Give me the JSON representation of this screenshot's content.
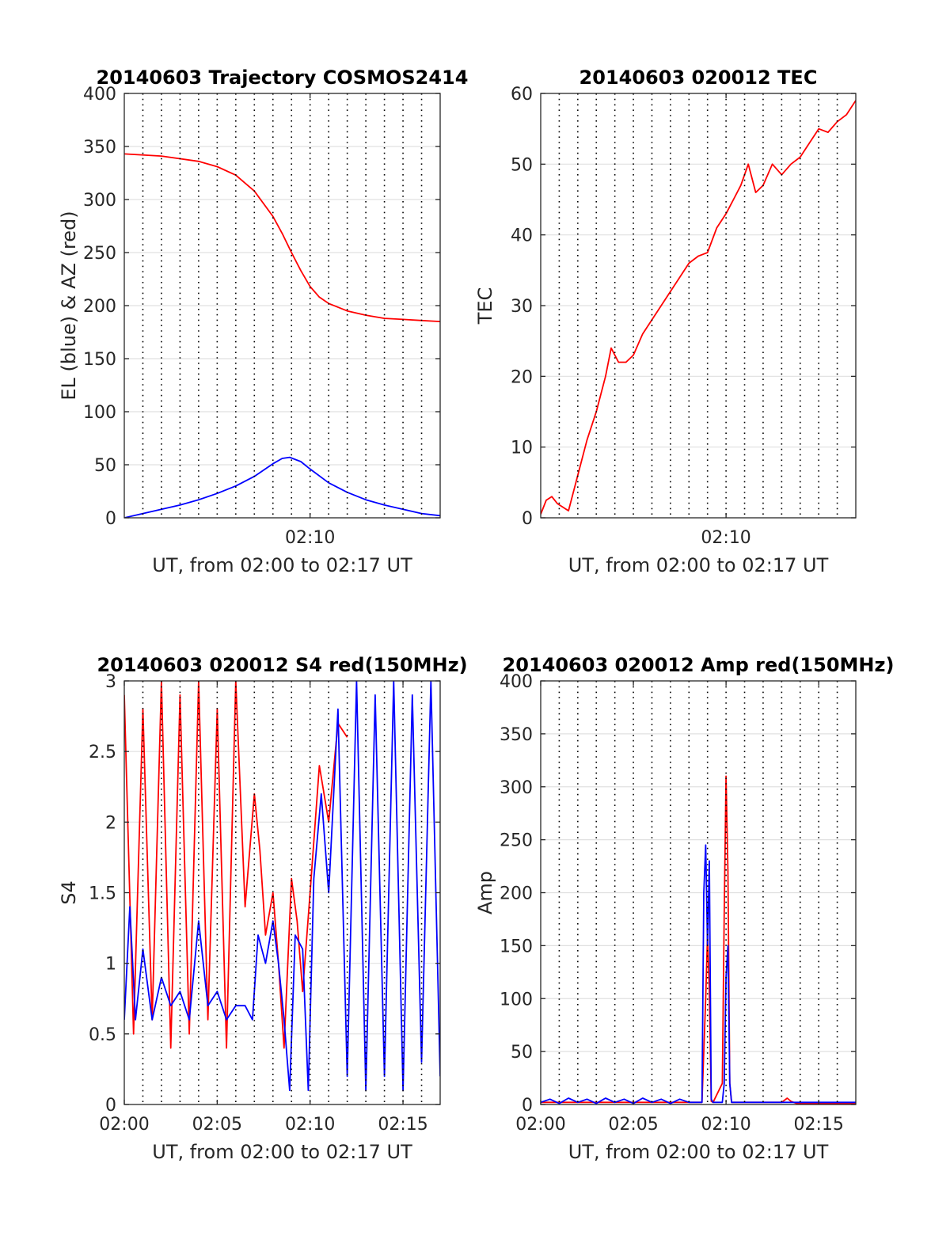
{
  "figure": {
    "series_colors": {
      "red": "#ff0000",
      "blue": "#0000ff"
    },
    "grid_color": "#e0e0e0",
    "dotted_line_color": "#000000"
  },
  "chart_data": [
    {
      "type": "line",
      "title": "20140603 Trajectory COSMOS2414",
      "xlabel": "UT, from 02:00 to 02:17 UT",
      "ylabel": "EL (blue) & AZ (red)",
      "xlim": [
        0,
        17
      ],
      "x_unit": "minutes after 02:00 UT",
      "ylim": [
        0,
        400
      ],
      "yticks": [
        0,
        50,
        100,
        150,
        200,
        250,
        300,
        350,
        400
      ],
      "xticks": [
        {
          "value": 10,
          "label": "02:10"
        }
      ],
      "dotted_verticals": [
        1,
        2,
        3,
        4,
        5,
        6,
        7,
        8,
        9,
        10,
        11,
        12,
        13,
        14,
        15,
        16
      ],
      "grid": "horizontal",
      "series": [
        {
          "color": "red",
          "x": [
            0,
            2,
            4,
            5,
            6,
            7,
            8,
            8.5,
            9,
            9.5,
            10,
            10.5,
            11,
            12,
            13,
            14,
            15,
            16,
            17
          ],
          "y": [
            343,
            341,
            336,
            331,
            323,
            308,
            284,
            268,
            250,
            233,
            218,
            208,
            202,
            195,
            191,
            188,
            187,
            186,
            185
          ]
        },
        {
          "color": "blue",
          "x": [
            0,
            1,
            2,
            3,
            4,
            5,
            6,
            7,
            7.5,
            8,
            8.5,
            8.9,
            9.5,
            10,
            11,
            12,
            13,
            14,
            15,
            16,
            17
          ],
          "y": [
            0,
            4,
            8,
            12,
            17,
            23,
            30,
            39,
            45,
            51,
            56,
            57,
            53,
            46,
            33,
            24,
            17,
            12,
            8,
            4,
            2
          ]
        }
      ]
    },
    {
      "type": "line",
      "title": "20140603 020012 TEC",
      "xlabel": "UT, from 02:00 to 02:17 UT",
      "ylabel": "TEC",
      "xlim": [
        0,
        17
      ],
      "x_unit": "minutes after 02:00 UT",
      "ylim": [
        0,
        60
      ],
      "yticks": [
        0,
        10,
        20,
        30,
        40,
        50,
        60
      ],
      "xticks": [
        {
          "value": 10,
          "label": "02:10"
        }
      ],
      "dotted_verticals": [
        1,
        2,
        3,
        4,
        5,
        6,
        7,
        8,
        9,
        10,
        11,
        12,
        13,
        14,
        15,
        16
      ],
      "grid": "horizontal",
      "series": [
        {
          "color": "red",
          "x": [
            0,
            0.3,
            0.6,
            0.9,
            1.2,
            1.5,
            2,
            2.5,
            3,
            3.5,
            3.8,
            4.2,
            4.6,
            5,
            5.5,
            6,
            6.5,
            7,
            7.5,
            8,
            8.5,
            9,
            9.5,
            10,
            10.4,
            10.8,
            11.2,
            11.6,
            12,
            12.5,
            13,
            13.5,
            14,
            14.5,
            15,
            15.5,
            16,
            16.5,
            17
          ],
          "y": [
            0.5,
            2.5,
            3,
            2,
            1.5,
            1,
            6,
            11,
            15,
            20,
            24,
            22,
            22,
            23,
            26,
            28,
            30,
            32,
            34,
            36,
            37,
            37.5,
            41,
            43,
            45,
            47,
            50,
            46,
            47,
            50,
            48.5,
            50,
            51,
            53,
            55,
            54.5,
            56,
            57,
            59
          ]
        }
      ]
    },
    {
      "type": "line",
      "title": "20140603 020012 S4 red(150MHz)",
      "xlabel": "UT, from 02:00 to 02:17 UT",
      "ylabel": "S4",
      "xlim": [
        0,
        17
      ],
      "x_unit": "minutes after 02:00 UT",
      "ylim": [
        0,
        3
      ],
      "yticks": [
        0,
        0.5,
        1,
        1.5,
        2,
        2.5,
        3
      ],
      "xticks": [
        {
          "value": 0,
          "label": "02:00"
        },
        {
          "value": 5,
          "label": "02:05"
        },
        {
          "value": 10,
          "label": "02:10"
        },
        {
          "value": 15,
          "label": "02:15"
        }
      ],
      "dotted_verticals": [
        1,
        2,
        3,
        4,
        5,
        6,
        7,
        8,
        9,
        10,
        11,
        12,
        13,
        14,
        15,
        16
      ],
      "grid": "horizontal",
      "series": [
        {
          "color": "red",
          "x": [
            0,
            0.5,
            1,
            1.5,
            2,
            2.5,
            3,
            3.5,
            4,
            4.5,
            5,
            5.5,
            6,
            6.5,
            7,
            7.3,
            7.6,
            8,
            8.3,
            8.6,
            9,
            9.3,
            9.6,
            10,
            10.5,
            11,
            11.5,
            12
          ],
          "y": [
            2.9,
            0.5,
            2.8,
            0.6,
            3,
            0.4,
            2.9,
            0.5,
            3,
            0.6,
            2.8,
            0.4,
            3,
            1.4,
            2.2,
            1.8,
            1.2,
            1.5,
            1,
            0.4,
            1.6,
            1.3,
            0.8,
            1.5,
            2.4,
            2,
            2.7,
            2.6
          ]
        },
        {
          "color": "blue",
          "x": [
            0,
            0.3,
            0.6,
            1,
            1.5,
            2,
            2.5,
            3,
            3.5,
            4,
            4.5,
            5,
            5.5,
            6,
            6.5,
            6.9,
            7.2,
            7.6,
            8,
            8.3,
            8.6,
            8.9,
            9.2,
            9.6,
            9.9,
            10.2,
            10.6,
            11,
            11.5,
            12,
            12.5,
            13,
            13.5,
            14,
            14.5,
            15,
            15.5,
            16,
            16.5,
            17
          ],
          "y": [
            0.6,
            1.4,
            0.6,
            1.1,
            0.6,
            0.9,
            0.7,
            0.8,
            0.6,
            1.3,
            0.7,
            0.8,
            0.6,
            0.7,
            0.7,
            0.6,
            1.2,
            1.0,
            1.3,
            1.0,
            0.6,
            0.1,
            1.2,
            1.1,
            0.1,
            1.6,
            2.2,
            1.5,
            2.8,
            0.2,
            3,
            0.1,
            2.9,
            0.2,
            3,
            0.1,
            2.9,
            0.3,
            3,
            0.2
          ]
        }
      ]
    },
    {
      "type": "line",
      "title": "20140603 020012 Amp red(150MHz)",
      "xlabel": "UT, from 02:00 to 02:17 UT",
      "ylabel": "Amp",
      "xlim": [
        0,
        17
      ],
      "x_unit": "minutes after 02:00 UT",
      "ylim": [
        0,
        400
      ],
      "yticks": [
        0,
        50,
        100,
        150,
        200,
        250,
        300,
        350,
        400
      ],
      "xticks": [
        {
          "value": 0,
          "label": "02:00"
        },
        {
          "value": 5,
          "label": "02:05"
        },
        {
          "value": 10,
          "label": "02:10"
        },
        {
          "value": 15,
          "label": "02:15"
        }
      ],
      "dotted_verticals": [
        1,
        2,
        3,
        4,
        5,
        6,
        7,
        8,
        9,
        10,
        11,
        12,
        13,
        14,
        15,
        16
      ],
      "grid": "horizontal",
      "series": [
        {
          "color": "red",
          "x": [
            0,
            8.7,
            8.9,
            9.0,
            9.1,
            9.2,
            9.3,
            9.8,
            9.9,
            10.0,
            10.1,
            10.2,
            10.3,
            13.0,
            13.3,
            13.5,
            13.8,
            17
          ],
          "y": [
            2,
            2,
            100,
            160,
            110,
            3,
            2,
            20,
            180,
            310,
            220,
            20,
            2,
            2,
            6,
            3,
            1,
            1
          ]
        },
        {
          "color": "blue",
          "x": [
            0,
            0.5,
            1,
            1.5,
            2,
            2.5,
            3,
            3.5,
            4,
            4.5,
            5,
            5.5,
            6,
            6.5,
            7,
            7.5,
            8,
            8.5,
            8.7,
            8.8,
            8.9,
            9.0,
            9.1,
            9.2,
            9.3,
            9.8,
            9.9,
            10.0,
            10.1,
            10.2,
            10.3,
            11,
            12,
            13,
            14,
            15,
            16,
            17
          ],
          "y": [
            2,
            5,
            1,
            6,
            2,
            5,
            1,
            6,
            2,
            5,
            1,
            6,
            2,
            5,
            1,
            5,
            2,
            2,
            2,
            200,
            245,
            150,
            230,
            5,
            2,
            2,
            20,
            120,
            150,
            20,
            2,
            2,
            2,
            2,
            2,
            2,
            2,
            2
          ]
        }
      ]
    }
  ]
}
